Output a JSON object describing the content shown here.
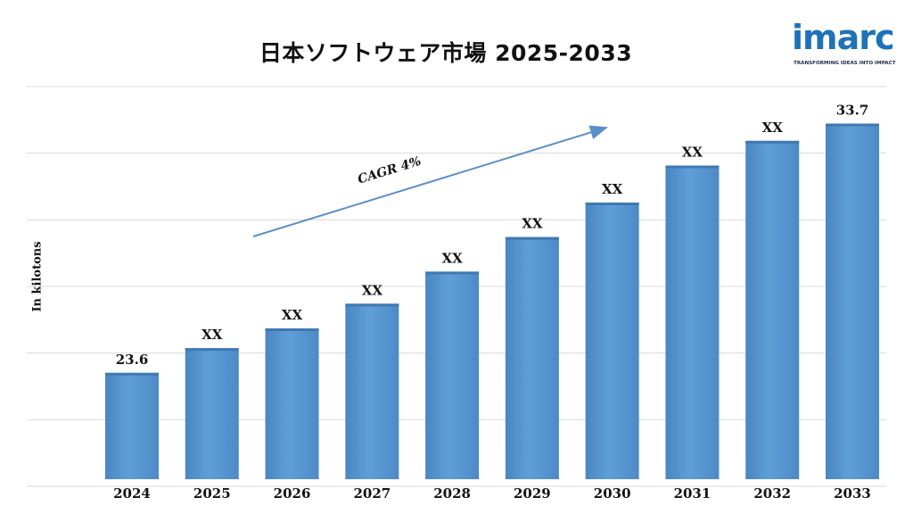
{
  "title": "日本ソフトウェア市場 2025-2033",
  "logo": {
    "word": "imarc",
    "tagline": "TRANSFORMING IDEAS INTO IMPACT",
    "color": "#1e72b8"
  },
  "chart_data": {
    "type": "bar",
    "title": "日本ソフトウェア市場 2025-2033",
    "ylabel": "In kilotons",
    "xlabel": "",
    "categories": [
      "2024",
      "2025",
      "2026",
      "2027",
      "2028",
      "2029",
      "2030",
      "2031",
      "2032",
      "2033"
    ],
    "values": [
      23.6,
      24.6,
      25.4,
      26.4,
      27.7,
      29.1,
      30.5,
      32.0,
      33.0,
      33.7
    ],
    "data_labels": [
      "23.6",
      "XX",
      "XX",
      "XX",
      "XX",
      "XX",
      "XX",
      "XX",
      "XX",
      "33.7"
    ],
    "ylim": [
      19.0,
      35.2
    ],
    "grid": true,
    "bar_color": "#5b9bd5",
    "annotation": {
      "text": "CAGR 4%",
      "color": "#5b8fc7"
    }
  }
}
